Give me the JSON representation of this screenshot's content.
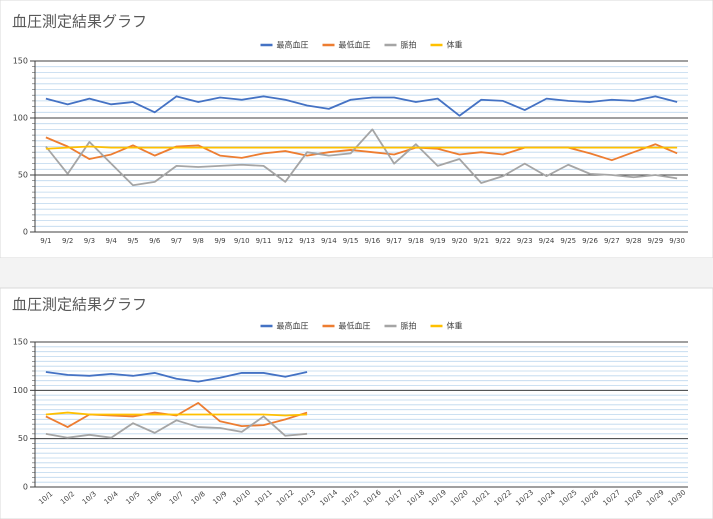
{
  "chart_data": [
    {
      "type": "line",
      "title": "血圧測定結果グラフ",
      "categories": [
        "9/1",
        "9/2",
        "9/3",
        "9/4",
        "9/5",
        "9/6",
        "9/7",
        "9/8",
        "9/9",
        "9/10",
        "9/11",
        "9/12",
        "9/13",
        "9/14",
        "9/15",
        "9/16",
        "9/17",
        "9/18",
        "9/19",
        "9/20",
        "9/21",
        "9/22",
        "9/23",
        "9/24",
        "9/25",
        "9/26",
        "9/27",
        "9/28",
        "9/29",
        "9/30"
      ],
      "series": [
        {
          "name": "最高血圧",
          "color": "#4472c4",
          "values": [
            117,
            112,
            117,
            112,
            114,
            105,
            119,
            114,
            118,
            116,
            119,
            116,
            111,
            108,
            116,
            118,
            118,
            114,
            117,
            102,
            116,
            115,
            107,
            117,
            115,
            114,
            116,
            115,
            119,
            114
          ]
        },
        {
          "name": "最低血圧",
          "color": "#ed7d31",
          "values": [
            83,
            75,
            64,
            68,
            76,
            67,
            75,
            76,
            67,
            65,
            69,
            71,
            67,
            70,
            72,
            70,
            68,
            74,
            73,
            68,
            70,
            68,
            74,
            74,
            74,
            69,
            63,
            70,
            77,
            69
          ]
        },
        {
          "name": "脈拍",
          "color": "#a5a5a5",
          "values": [
            75,
            51,
            79,
            60,
            41,
            44,
            58,
            57,
            58,
            59,
            58,
            44,
            70,
            67,
            69,
            90,
            60,
            77,
            58,
            64,
            43,
            49,
            60,
            49,
            59,
            51,
            50,
            48,
            50,
            47
          ]
        },
        {
          "name": "体重",
          "color": "#ffc000",
          "values": [
            73,
            74,
            75,
            74,
            74,
            74,
            74,
            74,
            74,
            74,
            74,
            74,
            74,
            74,
            74,
            74,
            74,
            74,
            74,
            74,
            74,
            74,
            74,
            74,
            74,
            74,
            74,
            74,
            74,
            74
          ]
        }
      ],
      "ylim": [
        0,
        150
      ],
      "yticks": [
        0,
        50,
        100,
        150
      ],
      "grid": true,
      "minor_grid": true,
      "legend": "top"
    },
    {
      "type": "line",
      "title": "血圧測定結果グラフ",
      "categories": [
        "10/1",
        "10/2",
        "10/3",
        "10/4",
        "10/5",
        "10/6",
        "10/7",
        "10/8",
        "10/9",
        "10/10",
        "10/11",
        "10/12",
        "10/13",
        "10/14",
        "10/15",
        "10/16",
        "10/17",
        "10/18",
        "10/19",
        "10/20",
        "10/21",
        "10/22",
        "10/23",
        "10/24",
        "10/25",
        "10/26",
        "10/27",
        "10/28",
        "10/29",
        "10/30"
      ],
      "series": [
        {
          "name": "最高血圧",
          "color": "#4472c4",
          "values": [
            119,
            116,
            115,
            117,
            115,
            118,
            112,
            109,
            113,
            118,
            118,
            114,
            119,
            null,
            null,
            null,
            null,
            null,
            null,
            null,
            null,
            null,
            null,
            null,
            null,
            null,
            null,
            null,
            null,
            null
          ]
        },
        {
          "name": "最低血圧",
          "color": "#ed7d31",
          "values": [
            73,
            62,
            75,
            74,
            73,
            77,
            74,
            87,
            68,
            63,
            64,
            70,
            77,
            null,
            null,
            null,
            null,
            null,
            null,
            null,
            null,
            null,
            null,
            null,
            null,
            null,
            null,
            null,
            null,
            null
          ]
        },
        {
          "name": "脈拍",
          "color": "#a5a5a5",
          "values": [
            55,
            51,
            54,
            51,
            66,
            56,
            69,
            62,
            61,
            57,
            73,
            53,
            55,
            null,
            null,
            null,
            null,
            null,
            null,
            null,
            null,
            null,
            null,
            null,
            null,
            null,
            null,
            null,
            null,
            null
          ]
        },
        {
          "name": "体重",
          "color": "#ffc000",
          "values": [
            75,
            77,
            75,
            75,
            75,
            75,
            75,
            75,
            75,
            75,
            75,
            74,
            75,
            null,
            null,
            null,
            null,
            null,
            null,
            null,
            null,
            null,
            null,
            null,
            null,
            null,
            null,
            null,
            null,
            null
          ]
        }
      ],
      "ylim": [
        0,
        150
      ],
      "yticks": [
        0,
        50,
        100,
        150
      ],
      "grid": true,
      "minor_grid": true,
      "legend": "top"
    }
  ]
}
